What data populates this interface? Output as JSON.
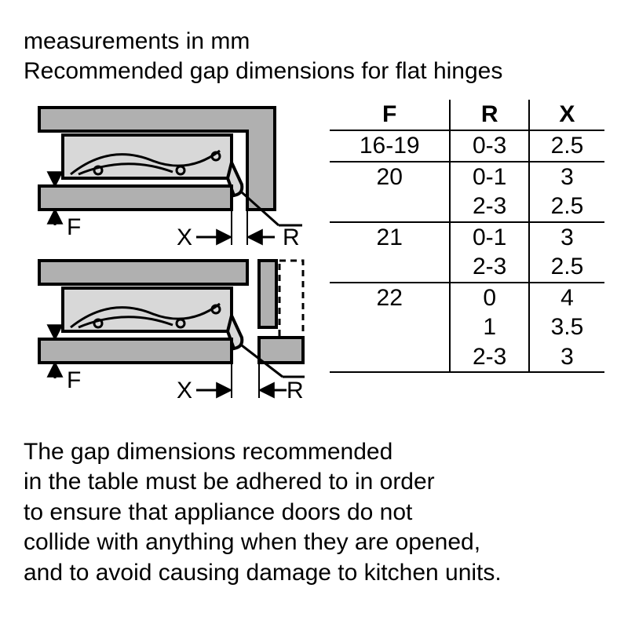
{
  "header": {
    "line1": "measurements in mm",
    "line2": "Recommended gap dimensions for flat hinges"
  },
  "diagram": {
    "type": "technical-diagram",
    "labels": {
      "F": "F",
      "X": "X",
      "R": "R"
    },
    "colors": {
      "stroke": "#000000",
      "fill_cabinet": "#b0b0b0",
      "fill_hinge": "#d8d8d8",
      "background": "#ffffff"
    },
    "stroke_width": 4,
    "label_fontsize": 30
  },
  "table": {
    "type": "table",
    "columns": [
      "F",
      "R",
      "X"
    ],
    "column_align": [
      "center",
      "center",
      "center"
    ],
    "header_fontweight": "bold",
    "border_color": "#000000",
    "border_width": 2,
    "fontsize": 30,
    "rows": [
      {
        "F": "16-19",
        "R": "0-3",
        "X": "2.5",
        "sep": true
      },
      {
        "F": "20",
        "R": "0-1",
        "X": "3",
        "sep": false
      },
      {
        "F": "",
        "R": "2-3",
        "X": "2.5",
        "sep": true
      },
      {
        "F": "21",
        "R": "0-1",
        "X": "3",
        "sep": false
      },
      {
        "F": "",
        "R": "2-3",
        "X": "2.5",
        "sep": true
      },
      {
        "F": "22",
        "R": "0",
        "X": "4",
        "sep": false
      },
      {
        "F": "",
        "R": "1",
        "X": "3.5",
        "sep": false
      },
      {
        "F": "",
        "R": "2-3",
        "X": "3",
        "sep": true
      }
    ]
  },
  "footer": {
    "lines": [
      "The gap dimensions recommended",
      "in the table must be adhered to in order",
      "to ensure that appliance doors do not",
      "collide with anything when they are opened,",
      "and to avoid causing damage to kitchen units."
    ]
  }
}
